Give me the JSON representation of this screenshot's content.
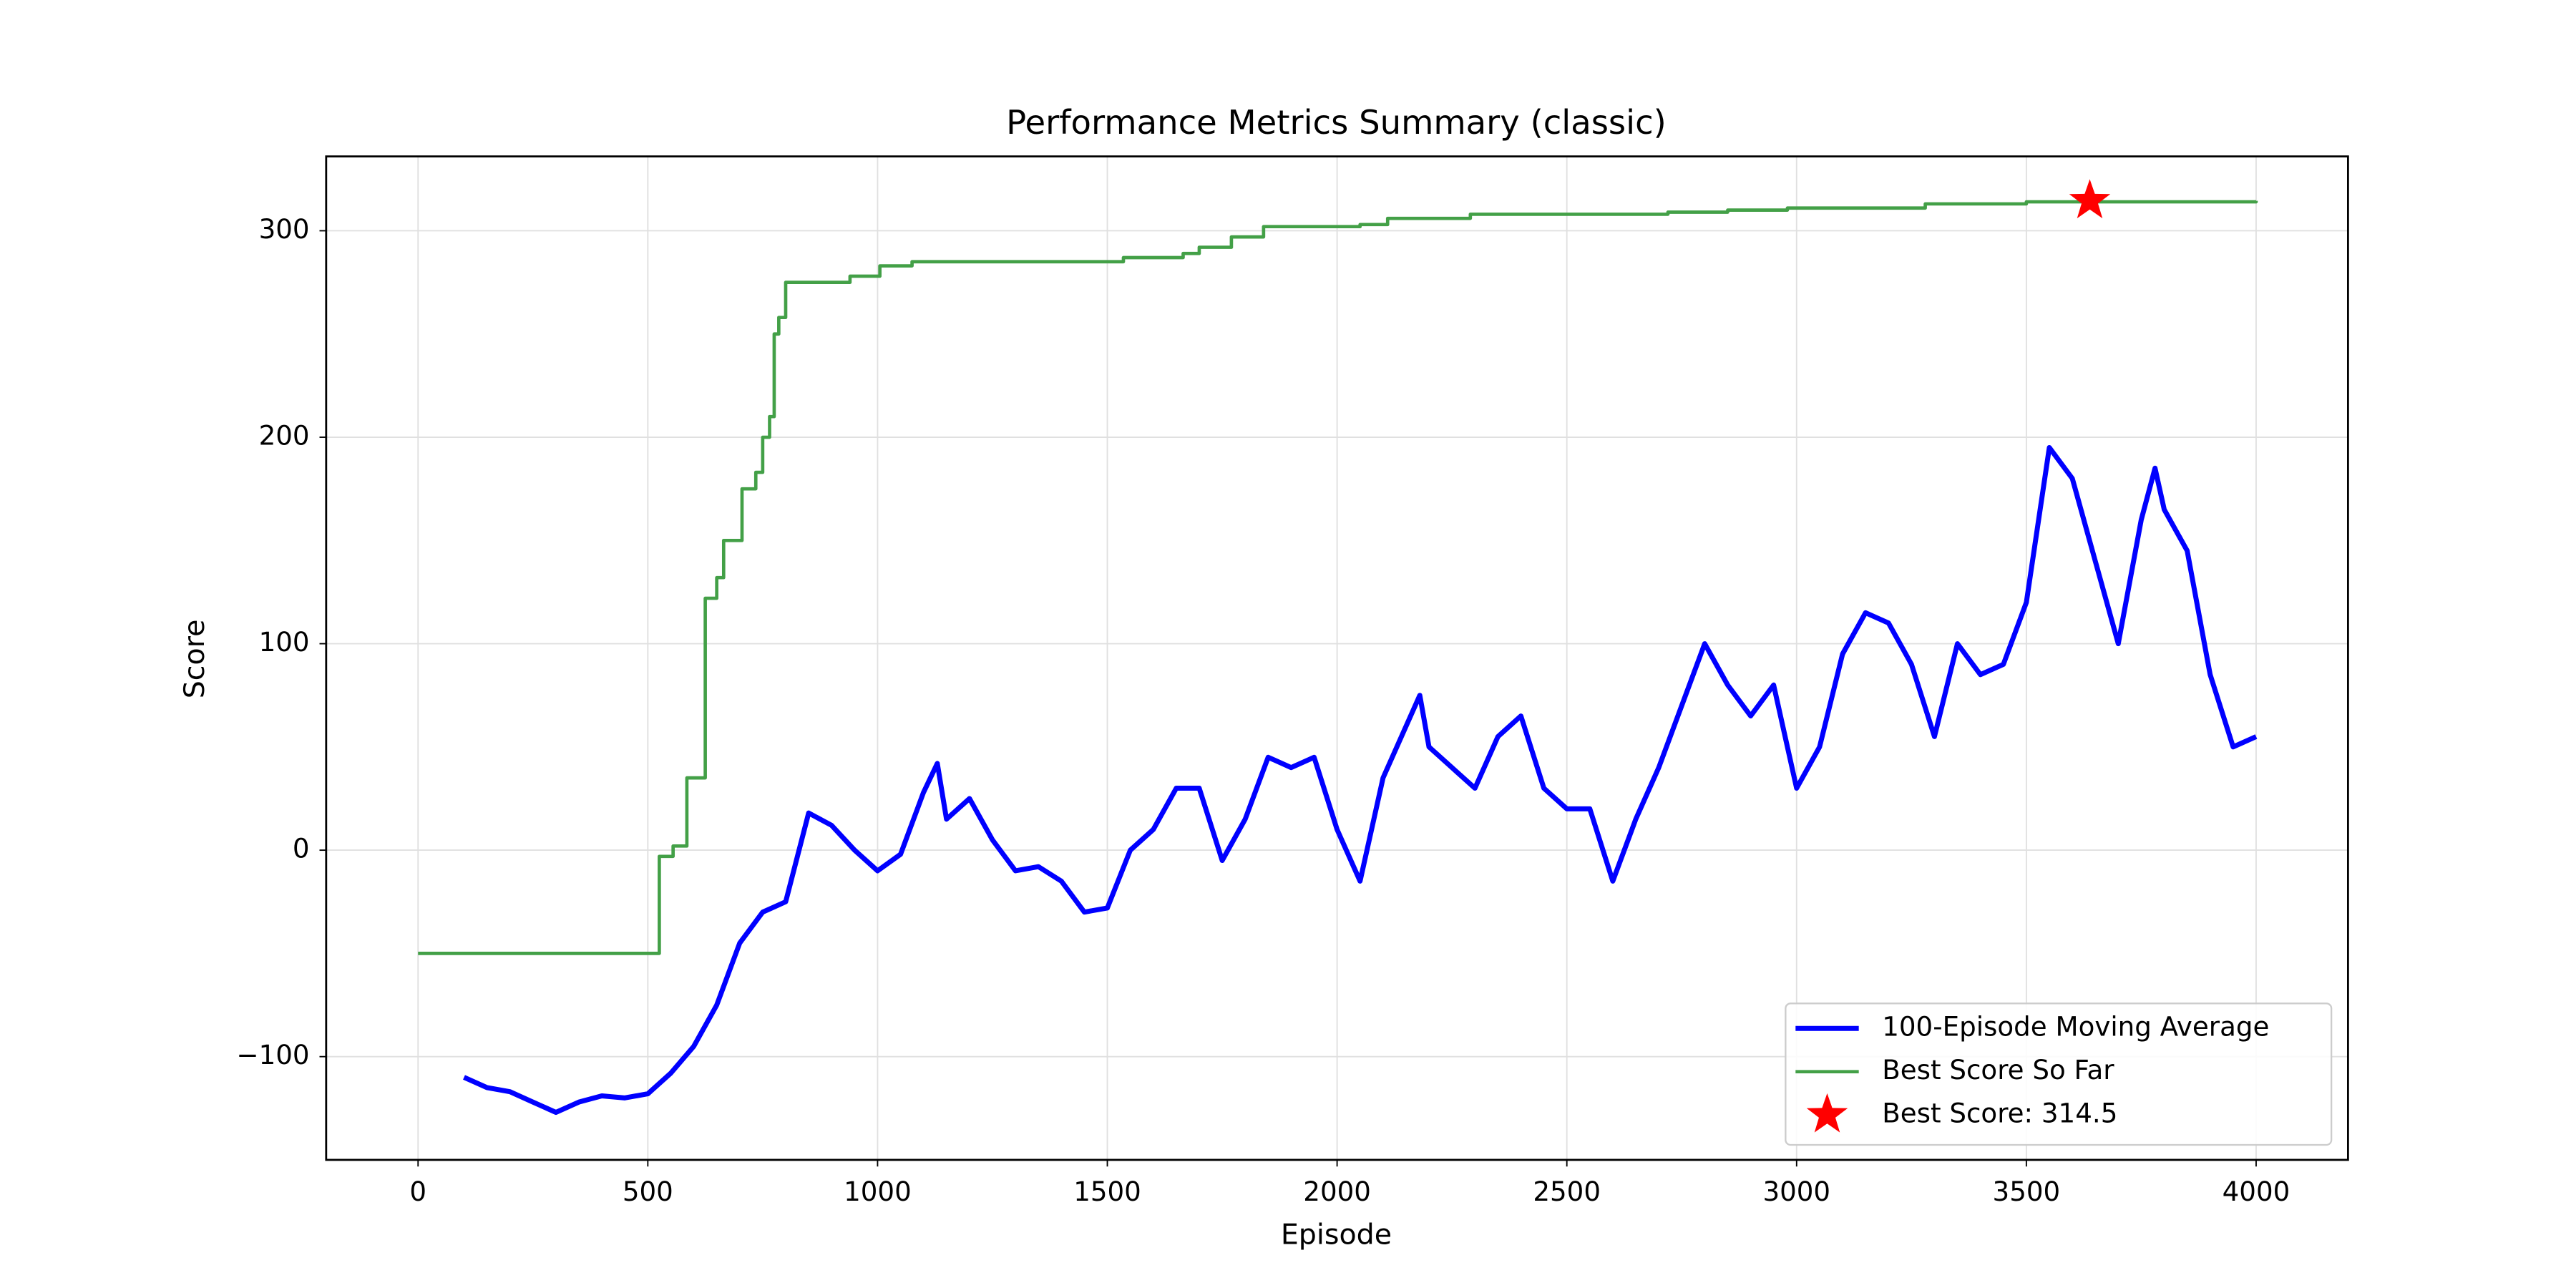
{
  "chart_data": {
    "type": "line",
    "title": "Performance Metrics Summary (classic)",
    "x_label": "Episode",
    "y_label": "Score",
    "xlim": [
      -200,
      4200
    ],
    "ylim": [
      -150,
      336
    ],
    "xticks": [
      0,
      500,
      1000,
      1500,
      2000,
      2500,
      3000,
      3500,
      4000
    ],
    "yticks": [
      {
        "value": -100,
        "label": "−100"
      },
      0,
      100,
      200,
      300
    ],
    "grid": true,
    "legend": "lower right",
    "series": [
      {
        "name": "100-Episode Moving Average",
        "color": "#0000ff",
        "style": "line",
        "x": [
          100,
          150,
          200,
          250,
          300,
          350,
          400,
          450,
          500,
          550,
          600,
          650,
          700,
          750,
          800,
          850,
          900,
          950,
          1000,
          1050,
          1100,
          1130,
          1150,
          1200,
          1250,
          1300,
          1350,
          1400,
          1450,
          1500,
          1550,
          1600,
          1650,
          1700,
          1750,
          1800,
          1850,
          1900,
          1950,
          2000,
          2050,
          2100,
          2150,
          2180,
          2200,
          2250,
          2300,
          2350,
          2400,
          2450,
          2500,
          2550,
          2600,
          2650,
          2700,
          2750,
          2800,
          2850,
          2900,
          2950,
          3000,
          3050,
          3100,
          3150,
          3200,
          3250,
          3300,
          3350,
          3400,
          3450,
          3500,
          3550,
          3600,
          3650,
          3700,
          3750,
          3780,
          3800,
          3850,
          3900,
          3950,
          4000
        ],
        "values": [
          -110,
          -115,
          -117,
          -122,
          -127,
          -122,
          -119,
          -120,
          -118,
          -108,
          -95,
          -75,
          -45,
          -30,
          -25,
          18,
          12,
          0,
          -10,
          -2,
          28,
          42,
          15,
          25,
          5,
          -10,
          -8,
          -15,
          -30,
          -28,
          0,
          10,
          30,
          30,
          -5,
          15,
          45,
          40,
          45,
          10,
          -15,
          35,
          60,
          75,
          50,
          40,
          30,
          55,
          65,
          30,
          20,
          20,
          -15,
          15,
          40,
          70,
          100,
          80,
          65,
          80,
          30,
          50,
          95,
          115,
          110,
          90,
          55,
          100,
          85,
          90,
          120,
          195,
          180,
          140,
          100,
          160,
          185,
          165,
          145,
          85,
          50,
          55
        ]
      },
      {
        "name": "Best Score So Far",
        "color": "#43a047",
        "style": "step",
        "x": [
          0,
          525,
          555,
          585,
          625,
          650,
          665,
          705,
          735,
          750,
          765,
          775,
          785,
          800,
          940,
          1005,
          1075,
          1535,
          1665,
          1700,
          1770,
          1840,
          2050,
          2110,
          2290,
          2720,
          2850,
          2980,
          3280,
          3500,
          4000
        ],
        "values": [
          -50,
          -3,
          2,
          35,
          122,
          132,
          150,
          175,
          183,
          200,
          210,
          250,
          258,
          275,
          278,
          283,
          285,
          287,
          289,
          292,
          297,
          302,
          303,
          306,
          308,
          309,
          310,
          311,
          313,
          314,
          314.5
        ]
      },
      {
        "name": "Best Score: 314.5",
        "color": "#ff0000",
        "style": "star",
        "x": [
          3638
        ],
        "values": [
          314.5
        ]
      }
    ]
  }
}
